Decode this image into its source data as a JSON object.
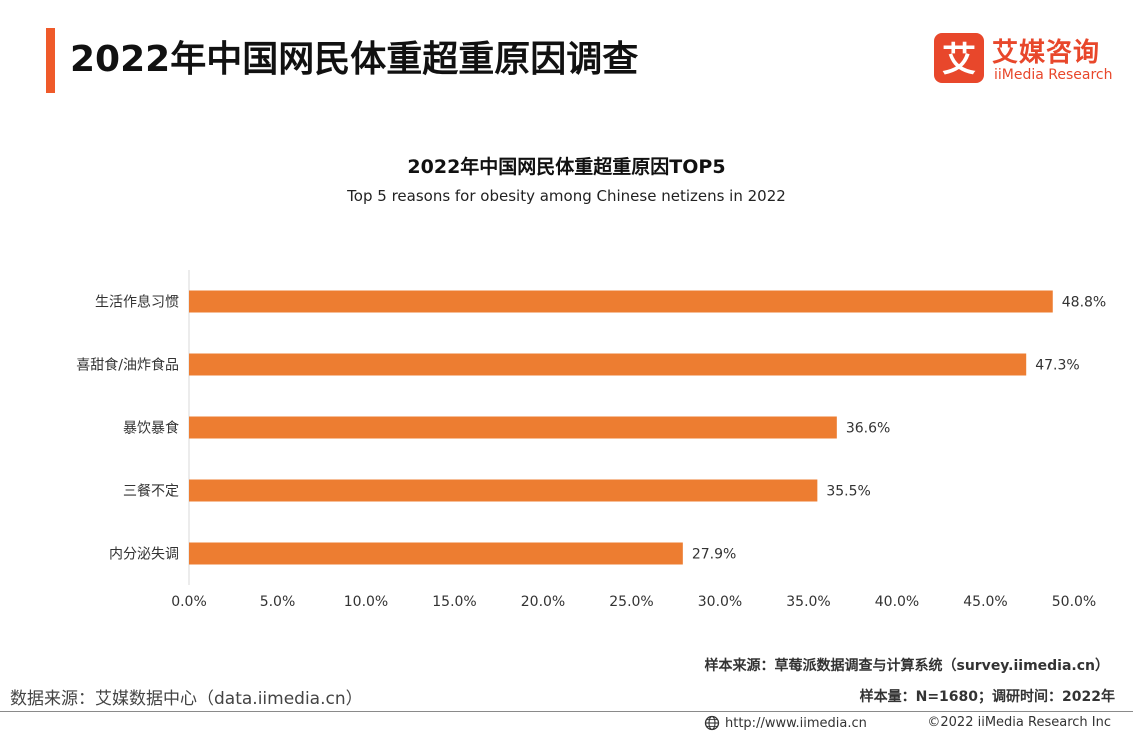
{
  "header": {
    "title": "2022年中国网民体重超重原因调查",
    "accent_color": "#ef5a2a"
  },
  "logo": {
    "badge_char": "艾",
    "name_cn": "艾媒咨询",
    "name_en": "iiMedia Research",
    "color": "#e8472b"
  },
  "chart_data": {
    "type": "bar",
    "orientation": "horizontal",
    "title": "2022年中国网民体重超重原因TOP5",
    "subtitle": "Top 5 reasons for obesity among Chinese netizens in 2022",
    "categories": [
      "生活作息习惯",
      "喜甜食/油炸食品",
      "暴饮暴食",
      "三餐不定",
      "内分泌失调"
    ],
    "values": [
      48.8,
      47.3,
      36.6,
      35.5,
      27.9
    ],
    "value_labels": [
      "48.8%",
      "47.3%",
      "36.6%",
      "35.5%",
      "27.9%"
    ],
    "xlim": [
      0,
      50
    ],
    "x_ticks": [
      "0.0%",
      "5.0%",
      "10.0%",
      "15.0%",
      "20.0%",
      "25.0%",
      "30.0%",
      "35.0%",
      "40.0%",
      "45.0%",
      "50.0%"
    ],
    "grid": false,
    "bar_color": "#ed7d31"
  },
  "footer": {
    "sample_source": "样本来源：草莓派数据调查与计算系统（survey.iimedia.cn）",
    "sample_size": "样本量：N=1680；调研时间：2022年",
    "data_source": "数据来源：艾媒数据中心（data.iimedia.cn）",
    "url": "http://www.iimedia.cn",
    "copyright": "©2022  iiMedia Research  Inc",
    "globe_icon": "globe-icon"
  }
}
